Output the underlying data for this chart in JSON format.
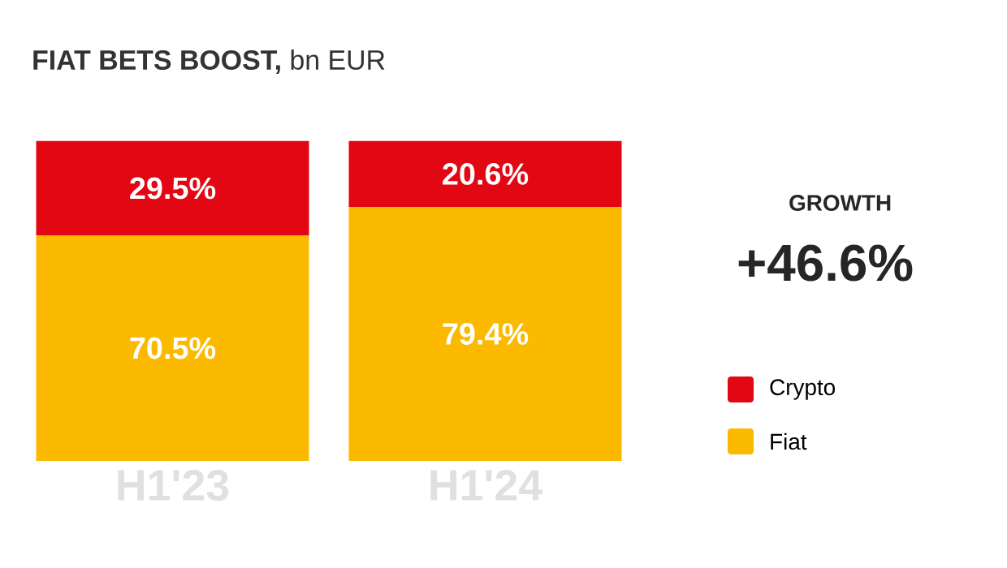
{
  "chart_data": {
    "type": "bar",
    "title": "**FIAT BETS BOOST,** bn EUR",
    "categories": [
      "H1'23",
      "H1'24"
    ],
    "stacked": true,
    "legend": "right",
    "tick_labels": "x",
    "series": [
      {
        "name": "Fiat",
        "color": "#fbb900",
        "values": [
          70.5,
          79.4
        ],
        "value_labels": [
          "70.5%",
          "79.4%"
        ]
      },
      {
        "name": "Crypto",
        "color": "#e30613",
        "values": [
          29.5,
          20.6
        ],
        "value_labels": [
          "29.5%",
          "20.6%"
        ]
      }
    ],
    "annotations": [
      "GROWTH",
      "+46.6%"
    ]
  }
}
